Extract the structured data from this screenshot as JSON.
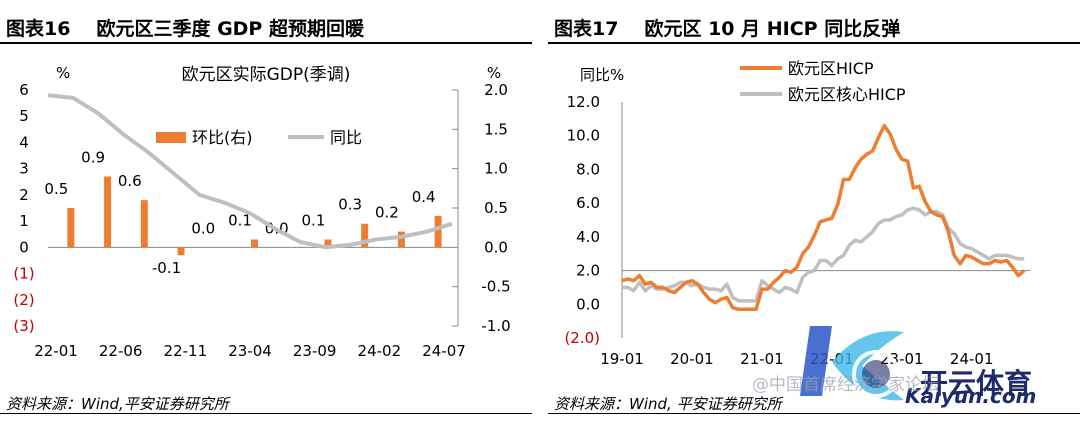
{
  "left": {
    "fig_label": "图表16",
    "title": "欧元区三季度 GDP 超预期回暖",
    "source": "资料来源：Wind,平安证券研究所",
    "chart_data": {
      "type": "bar+line",
      "title": "欧元区实际GDP(季调)",
      "left_unit": "%",
      "right_unit": "%",
      "left_ticks": [
        "6",
        "5",
        "4",
        "3",
        "2",
        "1",
        "0",
        "(1)",
        "(2)",
        "(3)"
      ],
      "left_range": [
        -3,
        6
      ],
      "right_ticks": [
        "2.0",
        "1.5",
        "1.0",
        "0.5",
        "0.0",
        "-0.5",
        "-1.0"
      ],
      "right_range": [
        -1.0,
        2.0
      ],
      "x_ticks": [
        "22-01",
        "22-06",
        "22-11",
        "23-04",
        "23-09",
        "24-02",
        "24-07"
      ],
      "legend": [
        {
          "name": "环比(右)",
          "color": "#ED7D31",
          "type": "bar"
        },
        {
          "name": "同比",
          "color": "#BFBFBF",
          "type": "line"
        }
      ],
      "qoq_bars": {
        "axis": "right",
        "values": [
          0.5,
          0.9,
          0.6,
          -0.1,
          0.0,
          0.1,
          0.0,
          0.1,
          0.3,
          0.2,
          0.4
        ],
        "labels": [
          "0.5",
          "0.9",
          "0.6",
          "-0.1",
          "0.0",
          "0.1",
          "0.0",
          "0.1",
          "0.3",
          "0.2",
          "0.4"
        ]
      },
      "yoy_line": {
        "axis": "left",
        "values": [
          5.8,
          5.7,
          5.1,
          4.3,
          3.6,
          2.8,
          2.0,
          1.7,
          1.3,
          0.7,
          0.2,
          0.0,
          0.1,
          0.3,
          0.4,
          0.6,
          0.9
        ]
      }
    }
  },
  "right": {
    "fig_label": "图表17",
    "title": "欧元区 10 月 HICP 同比反弹",
    "source": "资料来源：Wind, 平安证券研究所",
    "chart_data": {
      "type": "line",
      "ylabel": "同比%",
      "y_ticks": [
        "12.0",
        "10.0",
        "8.0",
        "6.0",
        "4.0",
        "2.0",
        "0.0",
        "(2.0)"
      ],
      "y_range": [
        -2,
        12
      ],
      "reference_line": 2.0,
      "x_ticks": [
        "19-01",
        "20-01",
        "21-01",
        "22-01",
        "23-01",
        "24-01"
      ],
      "x_range": [
        2019.0,
        2024.833
      ],
      "series": [
        {
          "name": "欧元区HICP",
          "color": "#ED7D31",
          "values": [
            1.4,
            1.5,
            1.4,
            1.7,
            1.2,
            1.3,
            1.0,
            1.0,
            0.8,
            0.7,
            1.0,
            1.3,
            1.4,
            1.2,
            0.7,
            0.3,
            0.1,
            0.3,
            0.4,
            -0.2,
            -0.3,
            -0.3,
            -0.3,
            -0.3,
            0.9,
            0.9,
            1.3,
            1.6,
            2.0,
            1.9,
            2.2,
            3.0,
            3.4,
            4.1,
            4.9,
            5.0,
            5.1,
            5.9,
            7.4,
            7.4,
            8.1,
            8.6,
            8.9,
            9.1,
            9.9,
            10.6,
            10.1,
            9.2,
            8.6,
            8.5,
            6.9,
            7.0,
            6.1,
            5.5,
            5.3,
            5.2,
            4.3,
            2.9,
            2.4,
            2.9,
            2.8,
            2.6,
            2.4,
            2.4,
            2.6,
            2.5,
            2.6,
            2.2,
            1.7,
            2.0
          ]
        },
        {
          "name": "欧元区核心HICP",
          "color": "#BFBFBF",
          "values": [
            1.0,
            1.0,
            0.8,
            1.3,
            0.8,
            1.1,
            0.9,
            0.9,
            1.0,
            1.1,
            1.3,
            1.3,
            1.1,
            1.2,
            1.0,
            0.9,
            0.9,
            0.8,
            1.2,
            0.4,
            0.2,
            0.2,
            0.2,
            0.2,
            1.4,
            1.1,
            0.9,
            0.7,
            1.0,
            0.9,
            0.7,
            1.6,
            1.9,
            2.0,
            2.6,
            2.6,
            2.3,
            2.7,
            2.9,
            3.5,
            3.8,
            3.7,
            4.0,
            4.3,
            4.8,
            5.0,
            5.0,
            5.2,
            5.3,
            5.6,
            5.7,
            5.6,
            5.3,
            5.5,
            5.5,
            5.3,
            4.5,
            4.2,
            3.6,
            3.4,
            3.3,
            3.1,
            2.9,
            2.7,
            2.9,
            2.9,
            2.9,
            2.8,
            2.7,
            2.7
          ]
        }
      ]
    }
  },
  "watermark": {
    "brand_cn": "开云体育",
    "brand_en": "Kaiyun.com",
    "overlay_text": "@中国首席经济学家论坛"
  }
}
